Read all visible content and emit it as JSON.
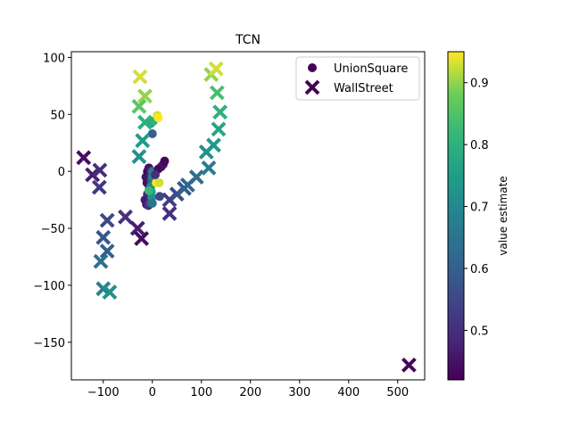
{
  "chart_data": {
    "type": "scatter",
    "title": "TCN",
    "xlabel": "",
    "ylabel": "",
    "xlim": [
      -165,
      555
    ],
    "ylim": [
      -183,
      105
    ],
    "xticks": [
      -100,
      0,
      100,
      200,
      300,
      400,
      500
    ],
    "yticks": [
      -150,
      -100,
      -50,
      0,
      50,
      100
    ],
    "xtick_labels": [
      "−100",
      "0",
      "100",
      "200",
      "300",
      "400",
      "500"
    ],
    "ytick_labels": [
      "−150",
      "−100",
      "−50",
      "0",
      "50",
      "100"
    ],
    "grid": false,
    "legend_position": "top-right",
    "colorbar": {
      "label": "value estimate",
      "colormap": "viridis",
      "range": [
        0.42,
        0.95
      ],
      "ticks": [
        0.5,
        0.6,
        0.7,
        0.8,
        0.9
      ],
      "tick_labels": [
        "0.5",
        "0.6",
        "0.7",
        "0.8",
        "0.9"
      ]
    },
    "series": [
      {
        "name": "UnionSquare",
        "marker": "circle",
        "points": [
          {
            "x": -15,
            "y": -25,
            "v": 0.47
          },
          {
            "x": -12,
            "y": -29,
            "v": 0.46
          },
          {
            "x": -8,
            "y": -30,
            "v": 0.5
          },
          {
            "x": -5,
            "y": -28,
            "v": 0.55
          },
          {
            "x": -10,
            "y": -20,
            "v": 0.48
          },
          {
            "x": -6,
            "y": -15,
            "v": 0.45
          },
          {
            "x": -11,
            "y": -10,
            "v": 0.44
          },
          {
            "x": -13,
            "y": -5,
            "v": 0.45
          },
          {
            "x": -10,
            "y": 0,
            "v": 0.43
          },
          {
            "x": -7,
            "y": 3,
            "v": 0.44
          },
          {
            "x": -4,
            "y": 1,
            "v": 0.46
          },
          {
            "x": -3,
            "y": -3,
            "v": 0.5
          },
          {
            "x": -2,
            "y": -8,
            "v": 0.58
          },
          {
            "x": -3,
            "y": -13,
            "v": 0.7
          },
          {
            "x": -2,
            "y": -18,
            "v": 0.75
          },
          {
            "x": -1,
            "y": -23,
            "v": 0.72
          },
          {
            "x": 0,
            "y": -28,
            "v": 0.65
          },
          {
            "x": 0,
            "y": -5,
            "v": 0.68
          },
          {
            "x": 0,
            "y": 0,
            "v": 0.66
          },
          {
            "x": -7,
            "y": -17,
            "v": 0.82
          },
          {
            "x": -3,
            "y": 42,
            "v": 0.75
          },
          {
            "x": 2,
            "y": 44,
            "v": 0.8
          },
          {
            "x": 0,
            "y": 33,
            "v": 0.6
          },
          {
            "x": 10,
            "y": 49,
            "v": 0.93
          },
          {
            "x": 12,
            "y": 47,
            "v": 0.95
          },
          {
            "x": 8,
            "y": -10,
            "v": 0.95
          },
          {
            "x": 14,
            "y": -10,
            "v": 0.93
          },
          {
            "x": 12,
            "y": 2,
            "v": 0.44
          },
          {
            "x": 18,
            "y": 4,
            "v": 0.43
          },
          {
            "x": 22,
            "y": 6,
            "v": 0.45
          },
          {
            "x": 25,
            "y": 9,
            "v": 0.43
          },
          {
            "x": 15,
            "y": -22,
            "v": 0.55
          },
          {
            "x": 6,
            "y": -3,
            "v": 0.5
          }
        ]
      },
      {
        "name": "WallStreet",
        "marker": "x",
        "points": [
          {
            "x": -25,
            "y": 83,
            "v": 0.93
          },
          {
            "x": -15,
            "y": 66,
            "v": 0.9
          },
          {
            "x": -27,
            "y": 57,
            "v": 0.86
          },
          {
            "x": -15,
            "y": 43,
            "v": 0.8
          },
          {
            "x": -20,
            "y": 27,
            "v": 0.75
          },
          {
            "x": -27,
            "y": 13,
            "v": 0.72
          },
          {
            "x": -140,
            "y": 12,
            "v": 0.44
          },
          {
            "x": -122,
            "y": -3,
            "v": 0.47
          },
          {
            "x": -107,
            "y": 1,
            "v": 0.5
          },
          {
            "x": -108,
            "y": -14,
            "v": 0.52
          },
          {
            "x": -92,
            "y": -43,
            "v": 0.55
          },
          {
            "x": -100,
            "y": -58,
            "v": 0.58
          },
          {
            "x": -92,
            "y": -70,
            "v": 0.6
          },
          {
            "x": -105,
            "y": -79,
            "v": 0.64
          },
          {
            "x": -100,
            "y": -103,
            "v": 0.68
          },
          {
            "x": -87,
            "y": -106,
            "v": 0.72
          },
          {
            "x": -55,
            "y": -40,
            "v": 0.5
          },
          {
            "x": -30,
            "y": -50,
            "v": 0.47
          },
          {
            "x": -22,
            "y": -59,
            "v": 0.44
          },
          {
            "x": 35,
            "y": -37,
            "v": 0.5
          },
          {
            "x": 35,
            "y": -25,
            "v": 0.53
          },
          {
            "x": 50,
            "y": -20,
            "v": 0.56
          },
          {
            "x": 65,
            "y": -15,
            "v": 0.59
          },
          {
            "x": 72,
            "y": -12,
            "v": 0.61
          },
          {
            "x": 90,
            "y": -5,
            "v": 0.63
          },
          {
            "x": 115,
            "y": 3,
            "v": 0.67
          },
          {
            "x": 110,
            "y": 17,
            "v": 0.72
          },
          {
            "x": 125,
            "y": 23,
            "v": 0.74
          },
          {
            "x": 135,
            "y": 37,
            "v": 0.77
          },
          {
            "x": 138,
            "y": 52,
            "v": 0.8
          },
          {
            "x": 132,
            "y": 69,
            "v": 0.84
          },
          {
            "x": 120,
            "y": 85,
            "v": 0.9
          },
          {
            "x": 130,
            "y": 90,
            "v": 0.93
          },
          {
            "x": 523,
            "y": -170,
            "v": 0.43
          }
        ]
      }
    ]
  }
}
